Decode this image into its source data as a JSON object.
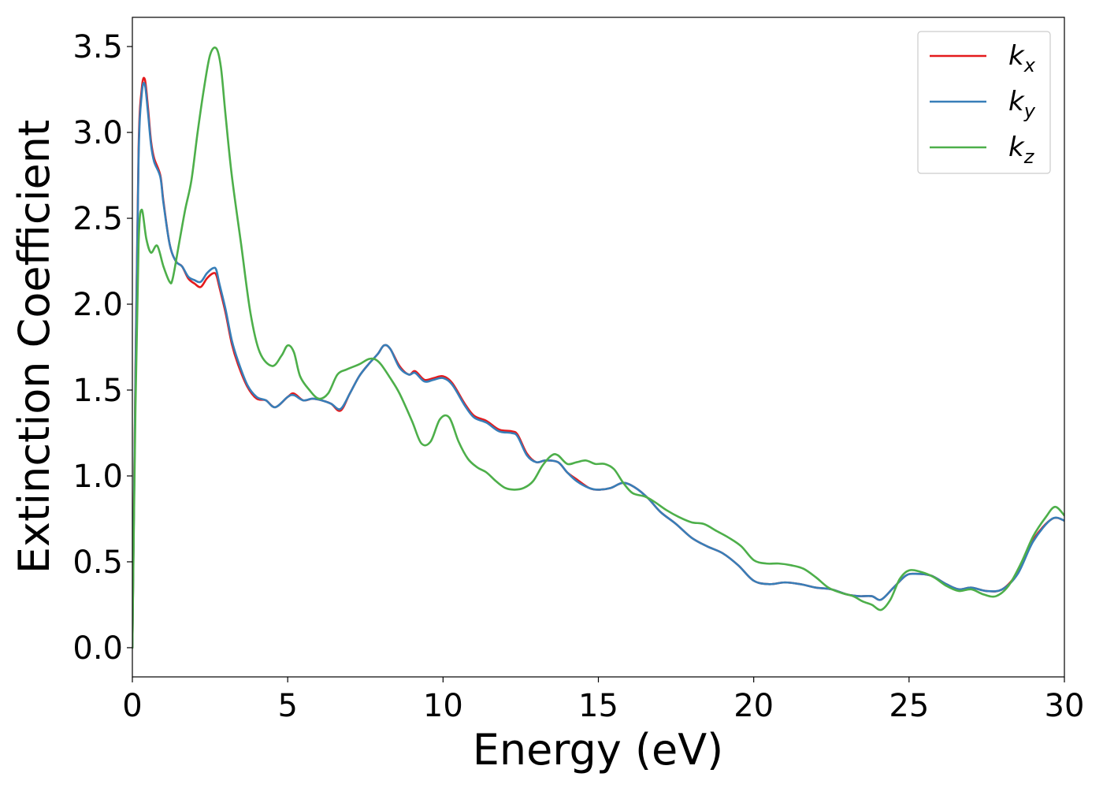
{
  "chart_data": {
    "type": "line",
    "xlabel": "Energy (eV)",
    "ylabel": "Extinction Coefficient",
    "xlim": [
      0,
      30
    ],
    "ylim": [
      -0.17,
      3.67
    ],
    "xticks": [
      0,
      5,
      10,
      15,
      20,
      25,
      30
    ],
    "xtick_labels": [
      "0",
      "5",
      "10",
      "15",
      "20",
      "25",
      "30"
    ],
    "yticks": [
      0.0,
      0.5,
      1.0,
      1.5,
      2.0,
      2.5,
      3.0,
      3.5
    ],
    "ytick_labels": [
      "0.0",
      "0.5",
      "1.0",
      "1.5",
      "2.0",
      "2.5",
      "3.0",
      "3.5"
    ],
    "grid": false,
    "legend_position": "top-right",
    "series": [
      {
        "name": "k",
        "subscript": "x",
        "color": "#e41a1c",
        "x": [
          0,
          0.1,
          0.2,
          0.3,
          0.4,
          0.5,
          0.6,
          0.7,
          0.9,
          1.0,
          1.2,
          1.4,
          1.6,
          1.8,
          2.0,
          2.2,
          2.4,
          2.6,
          2.7,
          2.8,
          3.0,
          3.2,
          3.4,
          3.7,
          4.0,
          4.3,
          4.6,
          5.0,
          5.2,
          5.5,
          5.8,
          6.1,
          6.4,
          6.7,
          7.0,
          7.3,
          7.6,
          7.9,
          8.1,
          8.3,
          8.6,
          8.9,
          9.1,
          9.4,
          9.7,
          10.0,
          10.3,
          10.7,
          11.0,
          11.4,
          11.8,
          12.2,
          12.4,
          12.7,
          13.0,
          13.3,
          13.7,
          14.0,
          14.3,
          14.7,
          15.0,
          15.4,
          15.8,
          16.2,
          16.6,
          17.0,
          17.5,
          18.0,
          18.5,
          19.0,
          19.5,
          20.0,
          20.5,
          21.0,
          21.5,
          22.0,
          22.5,
          23.0,
          23.4,
          23.8,
          24.1,
          24.5,
          24.9,
          25.2,
          25.7,
          26.2,
          26.6,
          27.0,
          27.5,
          28.0,
          28.5,
          29.0,
          29.6,
          30.0
        ],
        "values": [
          0.0,
          1.6,
          2.9,
          3.25,
          3.31,
          3.15,
          2.95,
          2.85,
          2.75,
          2.6,
          2.35,
          2.25,
          2.22,
          2.15,
          2.12,
          2.1,
          2.15,
          2.18,
          2.17,
          2.1,
          1.95,
          1.77,
          1.65,
          1.52,
          1.45,
          1.44,
          1.4,
          1.46,
          1.48,
          1.44,
          1.45,
          1.44,
          1.42,
          1.38,
          1.48,
          1.58,
          1.65,
          1.71,
          1.76,
          1.74,
          1.64,
          1.59,
          1.61,
          1.56,
          1.57,
          1.58,
          1.54,
          1.42,
          1.35,
          1.32,
          1.27,
          1.26,
          1.24,
          1.13,
          1.08,
          1.09,
          1.08,
          1.02,
          0.98,
          0.93,
          0.92,
          0.93,
          0.96,
          0.93,
          0.87,
          0.79,
          0.72,
          0.64,
          0.59,
          0.55,
          0.48,
          0.39,
          0.37,
          0.38,
          0.37,
          0.35,
          0.34,
          0.31,
          0.3,
          0.3,
          0.28,
          0.35,
          0.42,
          0.43,
          0.42,
          0.37,
          0.34,
          0.35,
          0.33,
          0.34,
          0.44,
          0.63,
          0.75,
          0.74
        ]
      },
      {
        "name": "k",
        "subscript": "y",
        "color": "#377eb8",
        "x": [
          0,
          0.1,
          0.2,
          0.3,
          0.4,
          0.5,
          0.6,
          0.7,
          0.9,
          1.0,
          1.2,
          1.4,
          1.6,
          1.8,
          2.0,
          2.2,
          2.4,
          2.6,
          2.7,
          2.8,
          3.0,
          3.2,
          3.4,
          3.7,
          4.0,
          4.3,
          4.6,
          5.0,
          5.2,
          5.5,
          5.8,
          6.1,
          6.4,
          6.7,
          7.0,
          7.3,
          7.6,
          7.9,
          8.1,
          8.3,
          8.6,
          8.9,
          9.1,
          9.4,
          9.7,
          10.0,
          10.3,
          10.7,
          11.0,
          11.4,
          11.8,
          12.2,
          12.4,
          12.7,
          13.0,
          13.3,
          13.7,
          14.0,
          14.3,
          14.7,
          15.0,
          15.4,
          15.8,
          16.2,
          16.6,
          17.0,
          17.5,
          18.0,
          18.5,
          19.0,
          19.5,
          20.0,
          20.5,
          21.0,
          21.5,
          22.0,
          22.5,
          23.0,
          23.4,
          23.8,
          24.1,
          24.5,
          24.9,
          25.2,
          25.7,
          26.2,
          26.6,
          27.0,
          27.5,
          28.0,
          28.5,
          29.0,
          29.6,
          30.0
        ],
        "values": [
          0.0,
          1.55,
          2.85,
          3.22,
          3.28,
          3.12,
          2.93,
          2.83,
          2.74,
          2.59,
          2.35,
          2.25,
          2.22,
          2.16,
          2.14,
          2.13,
          2.18,
          2.21,
          2.2,
          2.12,
          1.97,
          1.79,
          1.67,
          1.53,
          1.46,
          1.44,
          1.4,
          1.46,
          1.47,
          1.44,
          1.45,
          1.44,
          1.42,
          1.39,
          1.48,
          1.58,
          1.65,
          1.71,
          1.76,
          1.74,
          1.63,
          1.59,
          1.6,
          1.55,
          1.56,
          1.57,
          1.53,
          1.41,
          1.34,
          1.31,
          1.26,
          1.25,
          1.23,
          1.12,
          1.08,
          1.09,
          1.08,
          1.02,
          0.97,
          0.93,
          0.92,
          0.93,
          0.96,
          0.93,
          0.87,
          0.79,
          0.72,
          0.64,
          0.59,
          0.55,
          0.48,
          0.39,
          0.37,
          0.38,
          0.37,
          0.35,
          0.34,
          0.31,
          0.3,
          0.3,
          0.28,
          0.35,
          0.42,
          0.43,
          0.42,
          0.37,
          0.34,
          0.35,
          0.33,
          0.34,
          0.43,
          0.62,
          0.75,
          0.74
        ]
      },
      {
        "name": "k",
        "subscript": "z",
        "color": "#4daf4a",
        "x": [
          0,
          0.1,
          0.2,
          0.3,
          0.45,
          0.6,
          0.8,
          1.0,
          1.2,
          1.3,
          1.5,
          1.7,
          1.9,
          2.1,
          2.3,
          2.5,
          2.7,
          2.85,
          3.0,
          3.2,
          3.5,
          3.8,
          4.1,
          4.5,
          4.8,
          5.0,
          5.2,
          5.4,
          5.7,
          6.0,
          6.3,
          6.6,
          6.9,
          7.3,
          7.6,
          7.8,
          8.0,
          8.3,
          8.6,
          9.0,
          9.3,
          9.6,
          9.9,
          10.2,
          10.5,
          10.8,
          11.1,
          11.4,
          11.7,
          12.0,
          12.3,
          12.6,
          12.9,
          13.2,
          13.5,
          13.7,
          14.0,
          14.3,
          14.6,
          14.9,
          15.2,
          15.5,
          15.8,
          16.1,
          16.5,
          16.8,
          17.2,
          17.6,
          18.0,
          18.4,
          18.8,
          19.2,
          19.6,
          20.0,
          20.4,
          20.8,
          21.2,
          21.6,
          22.0,
          22.4,
          22.8,
          23.2,
          23.5,
          23.8,
          24.1,
          24.4,
          24.7,
          25.0,
          25.4,
          25.8,
          26.2,
          26.6,
          27.0,
          27.4,
          27.8,
          28.2,
          28.6,
          29.0,
          29.4,
          29.7,
          30.0
        ],
        "values": [
          0.0,
          1.4,
          2.35,
          2.55,
          2.38,
          2.3,
          2.34,
          2.22,
          2.13,
          2.15,
          2.35,
          2.55,
          2.72,
          3.0,
          3.25,
          3.45,
          3.49,
          3.38,
          3.1,
          2.75,
          2.35,
          1.95,
          1.72,
          1.64,
          1.7,
          1.76,
          1.72,
          1.58,
          1.5,
          1.45,
          1.48,
          1.59,
          1.62,
          1.65,
          1.68,
          1.68,
          1.65,
          1.57,
          1.48,
          1.32,
          1.19,
          1.2,
          1.33,
          1.34,
          1.2,
          1.1,
          1.05,
          1.02,
          0.97,
          0.93,
          0.92,
          0.93,
          0.97,
          1.06,
          1.12,
          1.12,
          1.07,
          1.08,
          1.09,
          1.07,
          1.07,
          1.04,
          0.96,
          0.9,
          0.88,
          0.85,
          0.8,
          0.76,
          0.73,
          0.72,
          0.68,
          0.64,
          0.59,
          0.51,
          0.49,
          0.49,
          0.48,
          0.46,
          0.41,
          0.35,
          0.32,
          0.3,
          0.27,
          0.25,
          0.22,
          0.28,
          0.4,
          0.45,
          0.44,
          0.41,
          0.36,
          0.33,
          0.34,
          0.31,
          0.3,
          0.36,
          0.49,
          0.65,
          0.76,
          0.82,
          0.77
        ]
      }
    ]
  }
}
